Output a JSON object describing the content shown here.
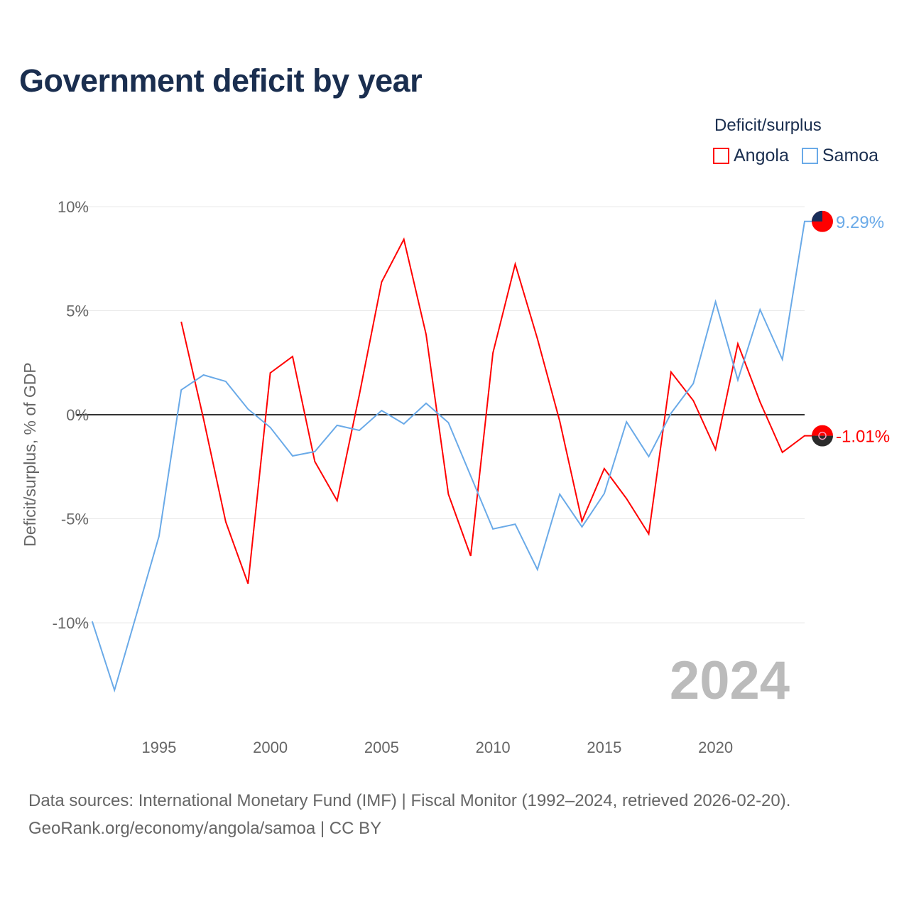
{
  "title": "Government deficit by year",
  "legend": {
    "title": "Deficit/surplus",
    "items": [
      {
        "label": "Angola",
        "color": "#ff0000"
      },
      {
        "label": "Samoa",
        "color": "#6aaae8"
      }
    ]
  },
  "year_watermark": "2024",
  "source": {
    "line1": "Data sources: International Monetary Fund (IMF) | Fiscal Monitor (1992–2024, retrieved 2026-02-20).",
    "line2": "GeoRank.org/economy/angola/samoa | CC BY"
  },
  "chart_data": {
    "type": "line",
    "title": "Government deficit by year",
    "xlabel": "",
    "ylabel": "Deficit/surplus, % of GDP",
    "xlim": [
      1992,
      2024
    ],
    "ylim": [
      -14,
      10
    ],
    "x_ticks": [
      1995,
      2000,
      2005,
      2010,
      2015,
      2020
    ],
    "x_tick_labels": [
      "1995",
      "2000",
      "2005",
      "2010",
      "2015",
      "2020"
    ],
    "y_ticks": [
      10,
      5,
      0,
      -5,
      -10
    ],
    "y_tick_labels": [
      "10%",
      "5%",
      "0%",
      "-5%",
      "-10%"
    ],
    "grid": true,
    "legend_position": "top-right",
    "series": [
      {
        "name": "Angola",
        "color": "#ff0000",
        "end_label": "-1.01%",
        "start": 1996,
        "values": [
          4.47,
          -0.2,
          -5.15,
          -8.12,
          2.01,
          2.8,
          -2.25,
          -4.13,
          0.96,
          6.38,
          8.43,
          3.86,
          -3.82,
          -6.79,
          2.97,
          7.24,
          3.65,
          -0.31,
          -5.12,
          -2.59,
          -4.03,
          -5.73,
          2.05,
          0.68,
          -1.67,
          3.41,
          0.61,
          -1.81,
          -1.01
        ]
      },
      {
        "name": "Samoa",
        "color": "#6aaae8",
        "end_label": "9.29%",
        "start": 1992,
        "values": [
          -9.93,
          -13.24,
          -9.56,
          -5.84,
          1.19,
          1.91,
          1.6,
          0.27,
          -0.61,
          -1.98,
          -1.77,
          -0.51,
          -0.75,
          0.2,
          -0.44,
          0.55,
          -0.38,
          -2.94,
          -5.49,
          -5.26,
          -7.44,
          -3.82,
          -5.39,
          -3.79,
          -0.34,
          -2.01,
          0.07,
          1.5,
          5.43,
          1.67,
          5.05,
          2.66,
          9.29
        ]
      }
    ]
  }
}
